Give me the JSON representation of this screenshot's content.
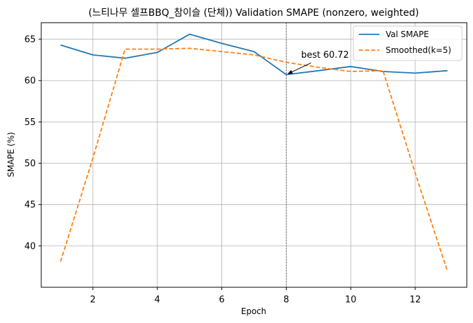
{
  "chart_data": {
    "type": "line",
    "title": "(느티나무 셀프BBQ_참이슬 (단체)) Validation SMAPE (nonzero, weighted)",
    "xlabel": "Epoch",
    "ylabel": "SMAPE (%)",
    "xlim": [
      0.4,
      13.6
    ],
    "ylim": [
      35.0,
      67.0
    ],
    "xticks": [
      2,
      4,
      6,
      8,
      10,
      12
    ],
    "yticks": [
      40,
      45,
      50,
      55,
      60,
      65
    ],
    "grid": true,
    "legend_position": "top-right",
    "series": [
      {
        "name": "Val SMAPE",
        "color": "#1f77b4",
        "style": "solid",
        "x": [
          1,
          2,
          3,
          4,
          5,
          6,
          7,
          8,
          9,
          10,
          11,
          12,
          13
        ],
        "y": [
          64.3,
          63.1,
          62.7,
          63.4,
          65.6,
          64.5,
          63.5,
          60.72,
          61.2,
          61.7,
          61.1,
          60.9,
          61.2
        ]
      },
      {
        "name": "Smoothed(k=5)",
        "color": "#ff7f0e",
        "style": "dashed",
        "x": [
          1,
          2,
          3,
          4,
          5,
          6,
          7,
          8,
          9,
          10,
          11,
          12,
          13
        ],
        "y": [
          38.1,
          50.6,
          63.8,
          63.8,
          63.9,
          63.5,
          63.1,
          62.2,
          61.6,
          61.1,
          61.2,
          48.8,
          36.9
        ]
      }
    ],
    "vline": {
      "x": 8,
      "color": "#7f7f7f",
      "style": "dotted"
    },
    "annotation": {
      "text": "best 60.72",
      "x": 8,
      "y": 60.72
    }
  }
}
